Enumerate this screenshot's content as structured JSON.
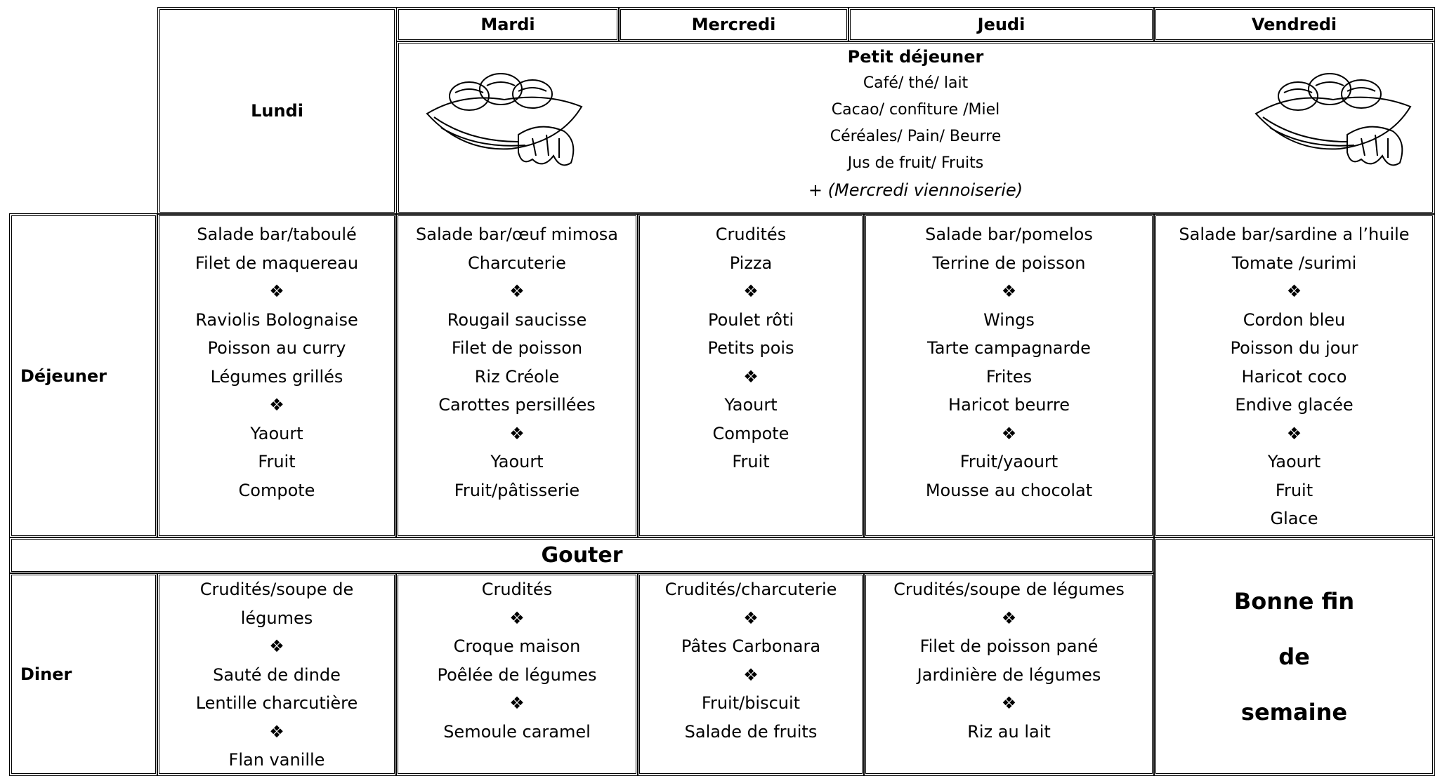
{
  "days": [
    "Lundi",
    "Mardi",
    "Mercredi",
    "Jeudi",
    "Vendredi"
  ],
  "breakfast": {
    "title": "Petit déjeuner",
    "items": [
      "Café/ thé/ lait",
      "Cacao/ confiture /Miel",
      "Céréales/ Pain/ Beurre",
      "Jus de fruit/ Fruits"
    ],
    "note": "+ (Mercredi viennoiserie)"
  },
  "lunch": {
    "label": "Déjeuner",
    "cells": [
      [
        "Salade bar/taboulé",
        "Filet de maquereau",
        "❖",
        "Raviolis Bolognaise",
        "Poisson  au  curry",
        "Légumes grillés",
        "❖",
        "Yaourt",
        "Fruit",
        "Compote"
      ],
      [
        "Salade bar/œuf mimosa",
        "Charcuterie",
        "❖",
        "Rougail saucisse",
        "Filet de poisson",
        "Riz Créole",
        "Carottes persillées",
        "❖",
        "Yaourt",
        "Fruit/pâtisserie"
      ],
      [
        "Crudités",
        "Pizza",
        "❖",
        "Poulet rôti",
        "Petits pois",
        "❖",
        "Yaourt",
        "Compote",
        "Fruit"
      ],
      [
        "Salade bar/pomelos",
        "Terrine de poisson",
        "❖",
        "Wings",
        "Tarte campagnarde",
        "Frites",
        "Haricot beurre",
        "❖",
        "Fruit/yaourt",
        "Mousse au chocolat"
      ],
      [
        "Salade bar/sardine a l’huile",
        "Tomate /surimi",
        "❖",
        "Cordon bleu",
        "Poisson du jour",
        "Haricot coco",
        "Endive glacée",
        "❖",
        "Yaourt",
        "Fruit",
        "Glace"
      ]
    ]
  },
  "snack": {
    "label": "Gouter"
  },
  "dinner": {
    "label": "Diner",
    "cells": [
      [
        "Crudités/soupe de",
        "légumes",
        "❖",
        "Sauté de dinde",
        "Lentille charcutière",
        "❖",
        "Flan vanille"
      ],
      [
        "Crudités",
        "❖",
        "Croque maison",
        "Poêlée de légumes",
        "❖",
        "Semoule caramel"
      ],
      [
        "Crudités/charcuterie",
        "❖",
        "Pâtes Carbonara",
        "❖",
        "Fruit/biscuit",
        "Salade de fruits"
      ],
      [
        "Crudités/soupe de légumes",
        "❖",
        "Filet de poisson pané",
        "Jardinière de légumes",
        "❖",
        "Riz au lait"
      ]
    ],
    "weekend": [
      "Bonne fin",
      "de",
      "semaine"
    ]
  }
}
